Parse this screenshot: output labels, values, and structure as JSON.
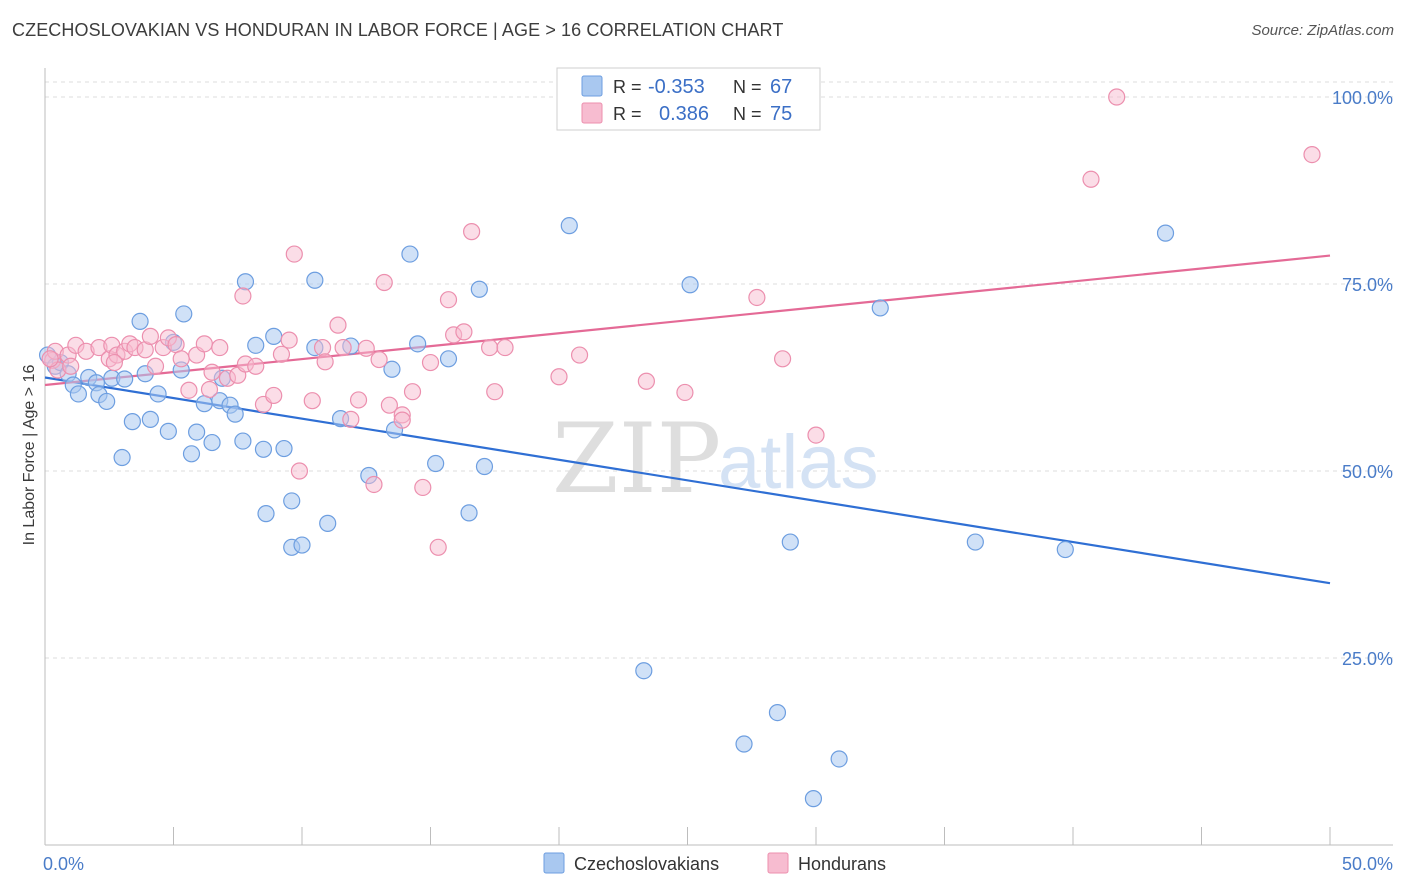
{
  "header": {
    "title": "CZECHOSLOVAKIAN VS HONDURAN IN LABOR FORCE | AGE > 16 CORRELATION CHART",
    "source": "Source: ZipAtlas.com"
  },
  "legend_box": {
    "row1": {
      "r_label": "R =",
      "r_value": "-0.353",
      "n_label": "N =",
      "n_value": "67"
    },
    "row2": {
      "r_label": "R =",
      "r_value": "0.386",
      "n_label": "N =",
      "n_value": "75"
    }
  },
  "bottom_legend": {
    "series1": "Czechoslovakians",
    "series2": "Hondurans"
  },
  "watermark": {
    "zip": "ZIP",
    "atlas": "atlas"
  },
  "colors": {
    "blue_fill": "#a9c8f0",
    "blue_stroke": "#6d9ee0",
    "blue_line": "#2f6fd4",
    "pink_fill": "#f7bcd0",
    "pink_stroke": "#ec8fae",
    "pink_line": "#e46a96",
    "grid": "#dcdcdc",
    "tick_text": "#4a7cc8"
  },
  "chart_data": {
    "type": "scatter",
    "title": "CZECHOSLOVAKIAN VS HONDURAN IN LABOR FORCE | AGE > 16 CORRELATION CHART",
    "xlabel": "",
    "ylabel": "In Labor Force | Age > 16",
    "xlim": [
      0,
      50
    ],
    "ylim": [
      0,
      102
    ],
    "x_tick_labels": [
      "0.0%",
      "50.0%"
    ],
    "y_ticks": [
      25,
      50,
      75,
      100
    ],
    "y_tick_labels": [
      "25.0%",
      "50.0%",
      "75.0%",
      "100.0%"
    ],
    "grid": true,
    "series": [
      {
        "name": "Czechoslovakians",
        "color": "#6d9ee0",
        "r": -0.353,
        "n": 67,
        "trend": {
          "x": [
            0,
            50
          ],
          "y": [
            62.5,
            35.0
          ]
        },
        "points": [
          [
            0.1,
            65.5
          ],
          [
            0.4,
            64.0
          ],
          [
            0.6,
            64.5
          ],
          [
            0.9,
            63.0
          ],
          [
            1.1,
            61.5
          ],
          [
            1.3,
            60.3
          ],
          [
            1.7,
            62.5
          ],
          [
            2.0,
            61.8
          ],
          [
            2.1,
            60.2
          ],
          [
            2.4,
            59.3
          ],
          [
            2.6,
            62.4
          ],
          [
            3.0,
            51.8
          ],
          [
            3.1,
            62.3
          ],
          [
            3.4,
            56.6
          ],
          [
            3.7,
            70.0
          ],
          [
            3.9,
            63.0
          ],
          [
            4.1,
            56.9
          ],
          [
            4.4,
            60.3
          ],
          [
            4.8,
            55.3
          ],
          [
            5.0,
            67.2
          ],
          [
            5.3,
            63.5
          ],
          [
            5.4,
            71.0
          ],
          [
            5.7,
            52.3
          ],
          [
            5.9,
            55.2
          ],
          [
            6.2,
            59.0
          ],
          [
            6.5,
            53.8
          ],
          [
            6.8,
            59.4
          ],
          [
            6.9,
            62.4
          ],
          [
            7.2,
            58.8
          ],
          [
            7.4,
            57.6
          ],
          [
            7.7,
            54.0
          ],
          [
            7.8,
            75.3
          ],
          [
            8.2,
            66.8
          ],
          [
            8.5,
            52.9
          ],
          [
            8.6,
            44.3
          ],
          [
            8.9,
            68.0
          ],
          [
            9.3,
            53.0
          ],
          [
            9.6,
            46.0
          ],
          [
            9.6,
            39.8
          ],
          [
            10.0,
            40.1
          ],
          [
            10.5,
            75.5
          ],
          [
            10.5,
            66.5
          ],
          [
            11.0,
            43.0
          ],
          [
            11.5,
            57.0
          ],
          [
            11.9,
            66.7
          ],
          [
            12.6,
            49.4
          ],
          [
            13.5,
            63.6
          ],
          [
            13.6,
            55.5
          ],
          [
            14.2,
            79.0
          ],
          [
            14.5,
            67.0
          ],
          [
            15.2,
            51.0
          ],
          [
            15.7,
            65.0
          ],
          [
            16.5,
            44.4
          ],
          [
            16.9,
            74.3
          ],
          [
            17.1,
            50.6
          ],
          [
            20.4,
            82.8
          ],
          [
            23.3,
            23.3
          ],
          [
            25.1,
            74.9
          ],
          [
            27.2,
            13.5
          ],
          [
            28.5,
            17.7
          ],
          [
            29.0,
            40.5
          ],
          [
            29.9,
            6.2
          ],
          [
            30.9,
            11.5
          ],
          [
            32.5,
            71.8
          ],
          [
            36.2,
            40.5
          ],
          [
            39.7,
            39.5
          ],
          [
            43.6,
            81.8
          ]
        ]
      },
      {
        "name": "Hondurans",
        "color": "#ec8fae",
        "r": 0.386,
        "n": 75,
        "trend": {
          "x": [
            0,
            50
          ],
          "y": [
            61.5,
            78.8
          ]
        },
        "points": [
          [
            0.3,
            64.8
          ],
          [
            0.4,
            66.0
          ],
          [
            0.5,
            63.5
          ],
          [
            0.9,
            65.5
          ],
          [
            1.2,
            66.8
          ],
          [
            1.6,
            66.0
          ],
          [
            2.1,
            66.5
          ],
          [
            2.5,
            65.0
          ],
          [
            2.6,
            66.8
          ],
          [
            2.8,
            65.5
          ],
          [
            3.1,
            66.0
          ],
          [
            3.3,
            67.0
          ],
          [
            3.5,
            66.5
          ],
          [
            3.9,
            66.2
          ],
          [
            4.1,
            68.0
          ],
          [
            4.3,
            64.0
          ],
          [
            4.6,
            66.5
          ],
          [
            4.8,
            67.8
          ],
          [
            5.1,
            66.9
          ],
          [
            5.3,
            65.0
          ],
          [
            5.6,
            60.8
          ],
          [
            5.9,
            65.5
          ],
          [
            6.2,
            67.0
          ],
          [
            6.4,
            60.9
          ],
          [
            6.5,
            63.2
          ],
          [
            6.8,
            66.5
          ],
          [
            7.1,
            62.4
          ],
          [
            7.5,
            62.8
          ],
          [
            7.7,
            73.4
          ],
          [
            7.8,
            64.3
          ],
          [
            8.2,
            64.0
          ],
          [
            8.5,
            58.9
          ],
          [
            8.9,
            60.1
          ],
          [
            9.2,
            65.6
          ],
          [
            9.5,
            67.5
          ],
          [
            9.7,
            79.0
          ],
          [
            9.9,
            50.0
          ],
          [
            10.4,
            59.4
          ],
          [
            10.8,
            66.5
          ],
          [
            10.9,
            64.6
          ],
          [
            11.4,
            69.5
          ],
          [
            11.6,
            66.5
          ],
          [
            11.9,
            56.9
          ],
          [
            12.2,
            59.5
          ],
          [
            12.5,
            66.4
          ],
          [
            12.8,
            48.2
          ],
          [
            13.0,
            64.9
          ],
          [
            13.2,
            75.2
          ],
          [
            13.4,
            58.8
          ],
          [
            13.9,
            57.5
          ],
          [
            13.9,
            56.8
          ],
          [
            14.3,
            60.6
          ],
          [
            14.7,
            47.8
          ],
          [
            15.0,
            64.5
          ],
          [
            15.3,
            39.8
          ],
          [
            15.7,
            72.9
          ],
          [
            15.9,
            68.2
          ],
          [
            16.3,
            68.6
          ],
          [
            16.6,
            82.0
          ],
          [
            17.3,
            66.5
          ],
          [
            17.5,
            60.6
          ],
          [
            17.9,
            66.5
          ],
          [
            20.0,
            62.6
          ],
          [
            20.8,
            65.5
          ],
          [
            23.4,
            62.0
          ],
          [
            24.9,
            60.5
          ],
          [
            27.7,
            73.2
          ],
          [
            28.7,
            65.0
          ],
          [
            30.0,
            54.8
          ],
          [
            40.7,
            89.0
          ],
          [
            41.7,
            100.0
          ],
          [
            49.3,
            92.3
          ],
          [
            0.2,
            65.0
          ],
          [
            1.0,
            64.0
          ],
          [
            2.7,
            64.5
          ]
        ]
      }
    ]
  }
}
